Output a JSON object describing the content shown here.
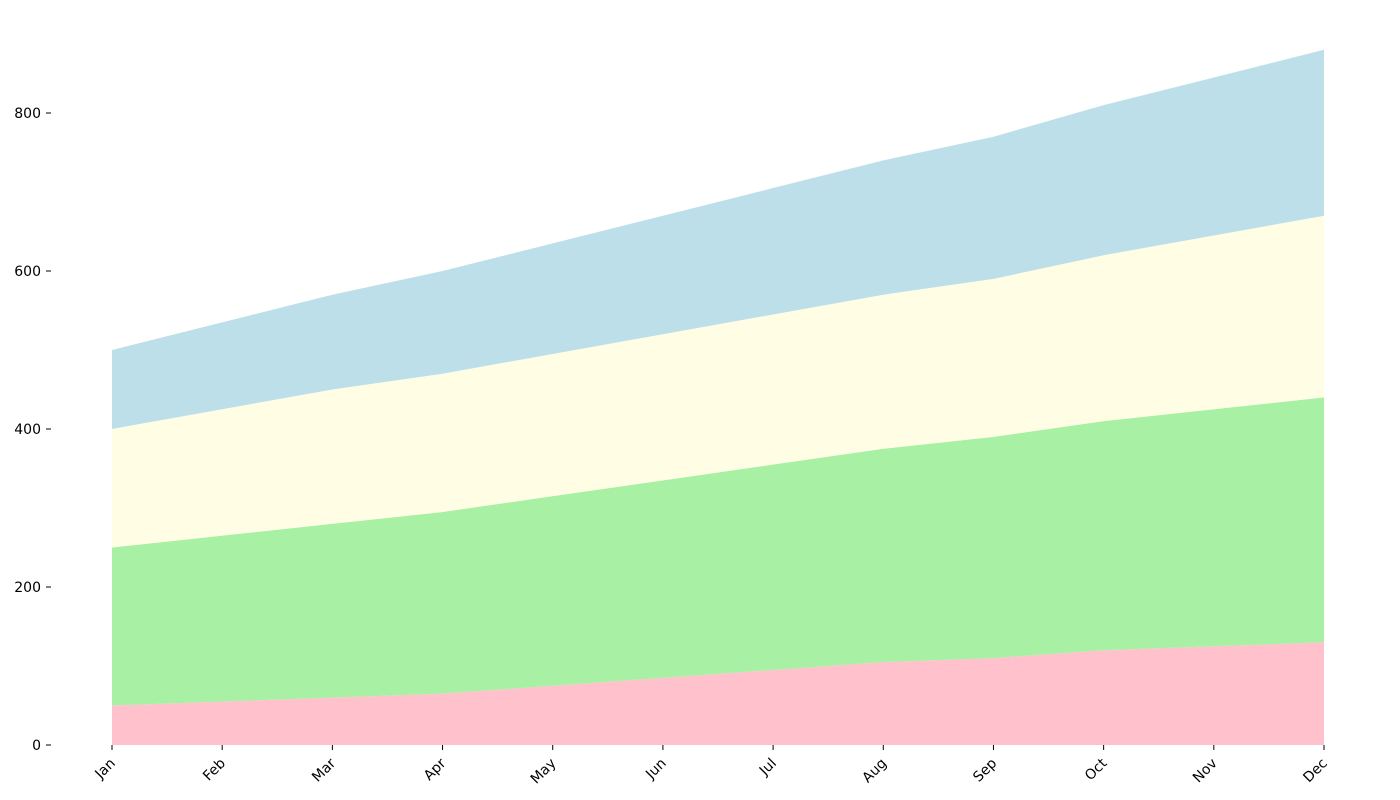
{
  "chart_data": {
    "type": "area",
    "stacked": true,
    "title": "",
    "xlabel": "",
    "ylabel": "",
    "categories": [
      "Jan",
      "Feb",
      "Mar",
      "Apr",
      "May",
      "Jun",
      "Jul",
      "Aug",
      "Sep",
      "Oct",
      "Nov",
      "Dec"
    ],
    "ylim": [
      0,
      880
    ],
    "yticks": [
      0,
      200,
      400,
      600,
      800
    ],
    "grid": false,
    "legend": "none",
    "series": [
      {
        "color": "#ffc1cc",
        "values": [
          50,
          55,
          60,
          65,
          75,
          85,
          95,
          105,
          110,
          120,
          125,
          130
        ]
      },
      {
        "color": "#a8f0a4",
        "values": [
          200,
          210,
          220,
          230,
          240,
          250,
          260,
          270,
          280,
          290,
          300,
          310
        ]
      },
      {
        "color": "#fffee5",
        "values": [
          150,
          160,
          170,
          175,
          180,
          185,
          190,
          195,
          200,
          210,
          220,
          230
        ]
      },
      {
        "color": "#bddfea",
        "values": [
          100,
          110,
          120,
          130,
          140,
          150,
          160,
          170,
          180,
          190,
          200,
          210
        ]
      }
    ]
  }
}
